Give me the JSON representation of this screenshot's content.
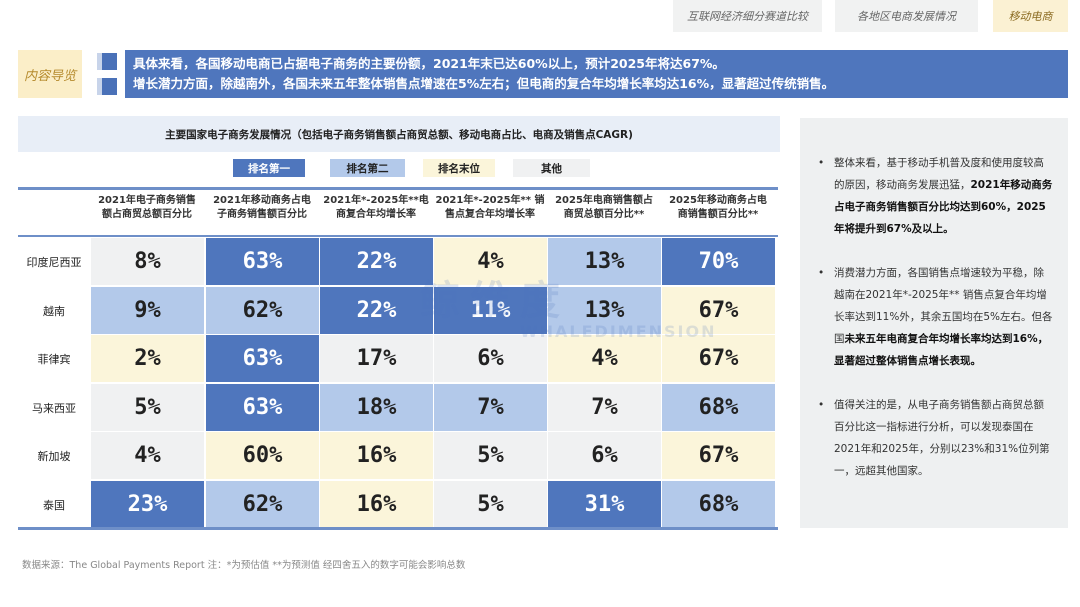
{
  "tabs": [
    {
      "label": "互联网经济细分赛道比较",
      "active": false
    },
    {
      "label": "各地区电商发展情况",
      "active": false
    },
    {
      "label": "移动电商",
      "active": true
    }
  ],
  "nav": {
    "label": "内容导览",
    "lines": [
      "具体来看，各国移动电商已占据电子商务的主要份额，2021年末已达60%以上，预计2025年将达67%。",
      "增长潜力方面，除越南外，各国未来五年整体销售点增速在5%左右；但电商的复合年均增长率均达16%，显著超过传统销售。"
    ]
  },
  "table": {
    "title": "主要国家电子商务发展情况（包括电子商务销售额占商贸总额、移动电商占比、电商及销售点CAGR)",
    "legend": [
      {
        "label": "排名第一",
        "key": "first",
        "color": "#4f76bd"
      },
      {
        "label": "排名第二",
        "key": "second",
        "color": "#b3c9ea"
      },
      {
        "label": "排名末位",
        "key": "last",
        "color": "#fbf5da"
      },
      {
        "label": "其他",
        "key": "other",
        "color": "#f0f1f2"
      }
    ],
    "columns": [
      [
        "2021年电子商务销售",
        "额占商贸总额百分比"
      ],
      [
        "2021年移动商务占电",
        "子商务销售额百分比"
      ],
      [
        "2021年*-2025年**电",
        "商复合年均增长率"
      ],
      [
        "2021年*-2025年** 销",
        "售点复合年均增长率"
      ],
      [
        "2025年电商销售额占",
        "商贸总额百分比**"
      ],
      [
        "2025年移动商务占电",
        "商销售额百分比**"
      ]
    ],
    "rows": [
      {
        "country": "印度尼西亚",
        "values": [
          "8%",
          "63%",
          "22%",
          "4%",
          "13%",
          "70%"
        ],
        "ranks": [
          "other",
          "first",
          "first",
          "last",
          "second",
          "first"
        ]
      },
      {
        "country": "越南",
        "values": [
          "9%",
          "62%",
          "22%",
          "11%",
          "13%",
          "67%"
        ],
        "ranks": [
          "second",
          "second",
          "first",
          "first",
          "second",
          "last"
        ]
      },
      {
        "country": "菲律宾",
        "values": [
          "2%",
          "63%",
          "17%",
          "6%",
          "4%",
          "67%"
        ],
        "ranks": [
          "last",
          "first",
          "other",
          "other",
          "last",
          "last"
        ]
      },
      {
        "country": "马来西亚",
        "values": [
          "5%",
          "63%",
          "18%",
          "7%",
          "7%",
          "68%"
        ],
        "ranks": [
          "other",
          "first",
          "second",
          "second",
          "other",
          "second"
        ]
      },
      {
        "country": "新加坡",
        "values": [
          "4%",
          "60%",
          "16%",
          "5%",
          "6%",
          "67%"
        ],
        "ranks": [
          "other",
          "last",
          "last",
          "other",
          "other",
          "last"
        ]
      },
      {
        "country": "泰国",
        "values": [
          "23%",
          "62%",
          "16%",
          "5%",
          "31%",
          "68%"
        ],
        "ranks": [
          "first",
          "second",
          "last",
          "other",
          "first",
          "second"
        ]
      }
    ]
  },
  "side": {
    "bullets": [
      {
        "plain": "整体来看，基于移动手机普及度和使用度较高的原因，移动商务发展迅猛，",
        "bold": "2021年移动商务占电子商务销售额百分比均达到60%，2025年将提升到67%及以上。"
      },
      {
        "plain": "消费潜力方面，各国销售点增速较为平稳，除越南在2021年*-2025年** 销售点复合年均增长率达到11%外，其余五国均在5%左右。但各国",
        "bold": "未来五年电商复合年均增长率均达到16%，显著超过整体销售点增长表现。"
      },
      {
        "plain": "值得关注的是，从电子商务销售额占商贸总额百分比这一指标进行分析，可以发现泰国在2021年和2025年，分别以23%和31%位列第一，远超其他国家。",
        "bold": ""
      }
    ]
  },
  "footer": "数据来源：The Global Payments Report   注：*为预估值 **为预测值  经四舍五入的数字可能会影响总数",
  "watermark": {
    "cn": "鲸维度",
    "en": "WHALEDIMENSION"
  }
}
